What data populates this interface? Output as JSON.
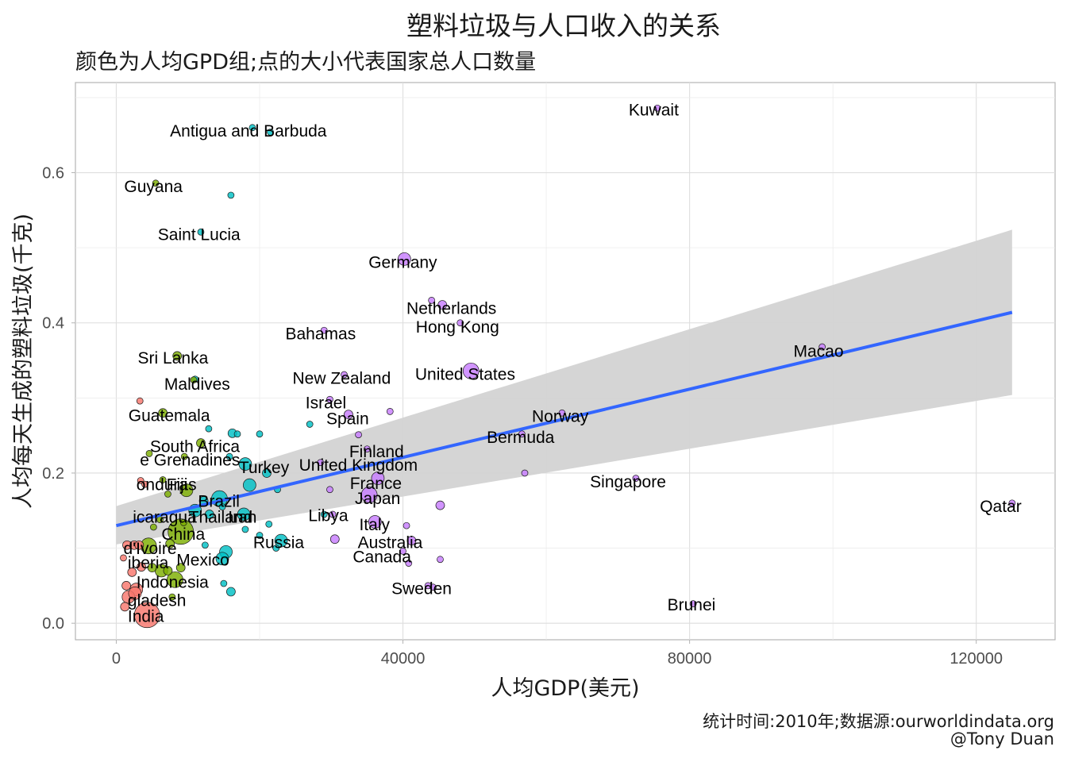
{
  "title": "塑料垃圾与人口收入的关系",
  "subtitle": "颜色为人均GPD组;点的大小代表国家总人口数量",
  "caption": {
    "line1": "统计时间:2010年;数据源:ourworldindata.org",
    "line2": "@Tony Duan"
  },
  "chart_data": {
    "type": "scatter",
    "title": "塑料垃圾与人口收入的关系",
    "subtitle": "颜色为人均GPD组;点的大小代表国家总人口数量",
    "xlabel": "人均GDP(美元)",
    "ylabel": "人均每天生成的塑料垃圾(千克)",
    "xlim": [
      -5700,
      131000
    ],
    "ylim": [
      -0.022,
      0.72
    ],
    "xticks": [
      0,
      40000,
      80000,
      120000
    ],
    "xtick_labels": [
      "0",
      "40000",
      "80000",
      "120000"
    ],
    "yticks": [
      0.0,
      0.2,
      0.4,
      0.6
    ],
    "ytick_labels": [
      "0.0",
      "0.2",
      "0.4",
      "0.6"
    ],
    "grid": true,
    "legend": "none",
    "group_colors": {
      "low": "#F8766D",
      "lower_middle": "#7CAE00",
      "upper_middle": "#00BFC4",
      "high": "#C77CFF"
    },
    "smooth": {
      "method": "linear fit with confidence band",
      "color": "#3366FF",
      "band_color": "#d3d3d3",
      "x": [
        0,
        125000
      ],
      "y": [
        0.13,
        0.414
      ],
      "band_low": [
        0.105,
        0.304
      ],
      "band_high": [
        0.156,
        0.524
      ]
    },
    "points": [
      {
        "x": 75500,
        "y": 0.686,
        "g": "high",
        "s": 1,
        "label": "Kuwait"
      },
      {
        "x": 19000,
        "y": 0.66,
        "g": "upper_middle",
        "s": 1,
        "label": "Antigua and Barbuda"
      },
      {
        "x": 21500,
        "y": 0.654,
        "g": "upper_middle",
        "s": 1,
        "label": ""
      },
      {
        "x": 5500,
        "y": 0.586,
        "g": "lower_middle",
        "s": 1,
        "label": "Guyana"
      },
      {
        "x": 16000,
        "y": 0.57,
        "g": "upper_middle",
        "s": 1,
        "label": ""
      },
      {
        "x": 11800,
        "y": 0.521,
        "g": "upper_middle",
        "s": 1,
        "label": "Saint Lucia"
      },
      {
        "x": 40200,
        "y": 0.485,
        "g": "high",
        "s": 3,
        "label": "Germany"
      },
      {
        "x": 44000,
        "y": 0.43,
        "g": "high",
        "s": 1,
        "label": ""
      },
      {
        "x": 45500,
        "y": 0.424,
        "g": "high",
        "s": 2,
        "label": "Netherlands"
      },
      {
        "x": 48000,
        "y": 0.4,
        "g": "high",
        "s": 1,
        "label": "Hong Kong"
      },
      {
        "x": 29000,
        "y": 0.39,
        "g": "high",
        "s": 1,
        "label": "Bahamas"
      },
      {
        "x": 8500,
        "y": 0.356,
        "g": "lower_middle",
        "s": 2,
        "label": "Sri Lanka"
      },
      {
        "x": 98500,
        "y": 0.368,
        "g": "high",
        "s": 1,
        "label": "Macao"
      },
      {
        "x": 49500,
        "y": 0.336,
        "g": "high",
        "s": 4,
        "label": "United States"
      },
      {
        "x": 31800,
        "y": 0.331,
        "g": "high",
        "s": 1,
        "label": "New Zealand"
      },
      {
        "x": 11000,
        "y": 0.325,
        "g": "upper_middle",
        "s": 1,
        "label": "Maldives"
      },
      {
        "x": 10800,
        "y": 0.324,
        "g": "lower_middle",
        "s": 1,
        "label": ""
      },
      {
        "x": 29800,
        "y": 0.298,
        "g": "high",
        "s": 1,
        "label": "Israel"
      },
      {
        "x": 3300,
        "y": 0.296,
        "g": "low",
        "s": 1,
        "label": ""
      },
      {
        "x": 38200,
        "y": 0.282,
        "g": "high",
        "s": 1,
        "label": ""
      },
      {
        "x": 32400,
        "y": 0.278,
        "g": "high",
        "s": 2,
        "label": "Spain"
      },
      {
        "x": 6500,
        "y": 0.28,
        "g": "lower_middle",
        "s": 2,
        "label": "Guatemala"
      },
      {
        "x": 62200,
        "y": 0.28,
        "g": "high",
        "s": 1,
        "label": "Norway"
      },
      {
        "x": 27000,
        "y": 0.265,
        "g": "upper_middle",
        "s": 1,
        "label": ""
      },
      {
        "x": 12900,
        "y": 0.259,
        "g": "upper_middle",
        "s": 1,
        "label": ""
      },
      {
        "x": 16200,
        "y": 0.253,
        "g": "upper_middle",
        "s": 2,
        "label": ""
      },
      {
        "x": 16900,
        "y": 0.252,
        "g": "upper_middle",
        "s": 1,
        "label": ""
      },
      {
        "x": 20000,
        "y": 0.252,
        "g": "upper_middle",
        "s": 1,
        "label": ""
      },
      {
        "x": 33800,
        "y": 0.251,
        "g": "high",
        "s": 1,
        "label": ""
      },
      {
        "x": 56600,
        "y": 0.252,
        "g": "high",
        "s": 1,
        "label": "Bermuda"
      },
      {
        "x": 11800,
        "y": 0.24,
        "g": "lower_middle",
        "s": 2,
        "label": "South Africa"
      },
      {
        "x": 4600,
        "y": 0.226,
        "g": "lower_middle",
        "s": 1,
        "label": ""
      },
      {
        "x": 9500,
        "y": 0.222,
        "g": "lower_middle",
        "s": 1,
        "label": ""
      },
      {
        "x": 35000,
        "y": 0.232,
        "g": "high",
        "s": 1,
        "label": "Finland"
      },
      {
        "x": 15800,
        "y": 0.222,
        "g": "upper_middle",
        "s": 1,
        "label": ""
      },
      {
        "x": 18000,
        "y": 0.212,
        "g": "upper_middle",
        "s": 3,
        "label": "Turkey"
      },
      {
        "x": 28500,
        "y": 0.214,
        "g": "high",
        "s": 1,
        "label": "United Kingdom"
      },
      {
        "x": 57000,
        "y": 0.2,
        "g": "high",
        "s": 1,
        "label": ""
      },
      {
        "x": 21000,
        "y": 0.2,
        "g": "upper_middle",
        "s": 2,
        "label": ""
      },
      {
        "x": 6500,
        "y": 0.191,
        "g": "lower_middle",
        "s": 1,
        "label": "e Grenadines"
      },
      {
        "x": 3400,
        "y": 0.19,
        "g": "low",
        "s": 1,
        "label": ""
      },
      {
        "x": 4000,
        "y": 0.185,
        "g": "low",
        "s": 1,
        "label": ""
      },
      {
        "x": 36500,
        "y": 0.193,
        "g": "high",
        "s": 3,
        "label": ""
      },
      {
        "x": 72500,
        "y": 0.193,
        "g": "high",
        "s": 1,
        "label": "Singapore"
      },
      {
        "x": 18600,
        "y": 0.184,
        "g": "upper_middle",
        "s": 3,
        "label": ""
      },
      {
        "x": 22500,
        "y": 0.178,
        "g": "upper_middle",
        "s": 1,
        "label": ""
      },
      {
        "x": 29800,
        "y": 0.178,
        "g": "high",
        "s": 1,
        "label": ""
      },
      {
        "x": 9800,
        "y": 0.177,
        "g": "lower_middle",
        "s": 3,
        "label": "Fiji"
      },
      {
        "x": 7200,
        "y": 0.172,
        "g": "lower_middle",
        "s": 1,
        "label": "onduras"
      },
      {
        "x": 35300,
        "y": 0.171,
        "g": "high",
        "s": 4,
        "label": "France"
      },
      {
        "x": 14400,
        "y": 0.166,
        "g": "upper_middle",
        "s": 4,
        "label": ""
      },
      {
        "x": 12200,
        "y": 0.163,
        "g": "upper_middle",
        "s": 2,
        "label": "Brazil"
      },
      {
        "x": 45200,
        "y": 0.157,
        "g": "high",
        "s": 2,
        "label": ""
      },
      {
        "x": 14800,
        "y": 0.155,
        "g": "upper_middle",
        "s": 1,
        "label": "Iran"
      },
      {
        "x": 11000,
        "y": 0.15,
        "g": "upper_middle",
        "s": 3,
        "label": "Thailand"
      },
      {
        "x": 13000,
        "y": 0.145,
        "g": "upper_middle",
        "s": 2,
        "label": ""
      },
      {
        "x": 17800,
        "y": 0.145,
        "g": "upper_middle",
        "s": 3,
        "label": ""
      },
      {
        "x": 29000,
        "y": 0.145,
        "g": "upper_middle",
        "s": 1,
        "label": "Libya"
      },
      {
        "x": 30200,
        "y": 0.145,
        "g": "high",
        "s": 1,
        "label": "Japan"
      },
      {
        "x": 6100,
        "y": 0.138,
        "g": "lower_middle",
        "s": 1,
        "label": ""
      },
      {
        "x": 9400,
        "y": 0.134,
        "g": "lower_middle",
        "s": 1,
        "label": ""
      },
      {
        "x": 36100,
        "y": 0.135,
        "g": "high",
        "s": 3,
        "label": "Italy"
      },
      {
        "x": 21300,
        "y": 0.132,
        "g": "upper_middle",
        "s": 1,
        "label": ""
      },
      {
        "x": 40500,
        "y": 0.13,
        "g": "high",
        "s": 1,
        "label": ""
      },
      {
        "x": 5200,
        "y": 0.128,
        "g": "lower_middle",
        "s": 1,
        "label": "icaragua"
      },
      {
        "x": 18000,
        "y": 0.125,
        "g": "upper_middle",
        "s": 1,
        "label": ""
      },
      {
        "x": 9000,
        "y": 0.122,
        "g": "lower_middle",
        "s": 6,
        "label": ""
      },
      {
        "x": 20000,
        "y": 0.117,
        "g": "upper_middle",
        "s": 1,
        "label": ""
      },
      {
        "x": 30500,
        "y": 0.112,
        "g": "high",
        "s": 2,
        "label": ""
      },
      {
        "x": 41200,
        "y": 0.11,
        "g": "high",
        "s": 2,
        "label": "Australia"
      },
      {
        "x": 23000,
        "y": 0.11,
        "g": "upper_middle",
        "s": 3,
        "label": "Russia"
      },
      {
        "x": 4500,
        "y": 0.103,
        "g": "lower_middle",
        "s": 4,
        "label": "China"
      },
      {
        "x": 7500,
        "y": 0.106,
        "g": "lower_middle",
        "s": 2,
        "label": ""
      },
      {
        "x": 12400,
        "y": 0.104,
        "g": "upper_middle",
        "s": 1,
        "label": ""
      },
      {
        "x": 1500,
        "y": 0.104,
        "g": "low",
        "s": 2,
        "label": "d'Ivoire"
      },
      {
        "x": 2500,
        "y": 0.104,
        "g": "low",
        "s": 2,
        "label": ""
      },
      {
        "x": 3200,
        "y": 0.104,
        "g": "low",
        "s": 2,
        "label": ""
      },
      {
        "x": 22300,
        "y": 0.1,
        "g": "upper_middle",
        "s": 1,
        "label": ""
      },
      {
        "x": 15300,
        "y": 0.095,
        "g": "upper_middle",
        "s": 3,
        "label": ""
      },
      {
        "x": 40000,
        "y": 0.096,
        "g": "high",
        "s": 1,
        "label": ""
      },
      {
        "x": 14800,
        "y": 0.086,
        "g": "upper_middle",
        "s": 3,
        "label": ""
      },
      {
        "x": 1000,
        "y": 0.087,
        "g": "low",
        "s": 1,
        "label": ""
      },
      {
        "x": 40800,
        "y": 0.08,
        "g": "high",
        "s": 1,
        "label": "Canada"
      },
      {
        "x": 45200,
        "y": 0.085,
        "g": "high",
        "s": 1,
        "label": ""
      },
      {
        "x": 9000,
        "y": 0.074,
        "g": "lower_middle",
        "s": 2,
        "label": ""
      },
      {
        "x": 6300,
        "y": 0.07,
        "g": "lower_middle",
        "s": 3,
        "label": "Mexico"
      },
      {
        "x": 7200,
        "y": 0.07,
        "g": "lower_middle",
        "s": 2,
        "label": ""
      },
      {
        "x": 5000,
        "y": 0.074,
        "g": "lower_middle",
        "s": 2,
        "label": ""
      },
      {
        "x": 3500,
        "y": 0.075,
        "g": "low",
        "s": 2,
        "label": "iberia"
      },
      {
        "x": 2200,
        "y": 0.068,
        "g": "low",
        "s": 2,
        "label": ""
      },
      {
        "x": 8200,
        "y": 0.058,
        "g": "lower_middle",
        "s": 4,
        "label": "Indonesia"
      },
      {
        "x": 1400,
        "y": 0.05,
        "g": "low",
        "s": 2,
        "label": ""
      },
      {
        "x": 2800,
        "y": 0.045,
        "g": "low",
        "s": 3,
        "label": ""
      },
      {
        "x": 16000,
        "y": 0.042,
        "g": "upper_middle",
        "s": 2,
        "label": ""
      },
      {
        "x": 15000,
        "y": 0.053,
        "g": "upper_middle",
        "s": 1,
        "label": ""
      },
      {
        "x": 43500,
        "y": 0.05,
        "g": "high",
        "s": 1,
        "label": "Sweden"
      },
      {
        "x": 44200,
        "y": 0.048,
        "g": "high",
        "s": 1,
        "label": ""
      },
      {
        "x": 1700,
        "y": 0.035,
        "g": "low",
        "s": 3,
        "label": "gladesh"
      },
      {
        "x": 2600,
        "y": 0.04,
        "g": "low",
        "s": 3,
        "label": ""
      },
      {
        "x": 1200,
        "y": 0.022,
        "g": "low",
        "s": 2,
        "label": ""
      },
      {
        "x": 7800,
        "y": 0.035,
        "g": "lower_middle",
        "s": 1,
        "label": ""
      },
      {
        "x": 4300,
        "y": 0.011,
        "g": "low",
        "s": 6,
        "label": "India"
      },
      {
        "x": 80500,
        "y": 0.026,
        "g": "high",
        "s": 1,
        "label": "Brunei"
      },
      {
        "x": 125000,
        "y": 0.16,
        "g": "high",
        "s": 1,
        "label": "Qatar"
      }
    ],
    "labels": [
      {
        "text": "Kuwait",
        "x": 71500,
        "y": 0.676,
        "color": "#000000"
      },
      {
        "text": "Antigua and Barbuda",
        "x": 7500,
        "y": 0.648,
        "color": "#000000"
      },
      {
        "text": "Guyana",
        "x": 1100,
        "y": 0.574,
        "color": "#000000"
      },
      {
        "text": "Saint Lucia",
        "x": 5800,
        "y": 0.51,
        "color": "#000000"
      },
      {
        "text": "Germany",
        "x": 35200,
        "y": 0.473,
        "color": "#000000"
      },
      {
        "text": "Netherlands",
        "x": 40500,
        "y": 0.412,
        "color": "#000000"
      },
      {
        "text": "Hong Kong",
        "x": 41800,
        "y": 0.387,
        "color": "#000000"
      },
      {
        "text": "Bahamas",
        "x": 23600,
        "y": 0.378,
        "color": "#000000"
      },
      {
        "text": "Sri Lanka",
        "x": 3000,
        "y": 0.346,
        "color": "#000000"
      },
      {
        "text": "Macao",
        "x": 94500,
        "y": 0.355,
        "color": "#4d4d4d"
      },
      {
        "text": "United States",
        "x": 41700,
        "y": 0.324,
        "color": "#000000"
      },
      {
        "text": "New Zealand",
        "x": 24600,
        "y": 0.319,
        "color": "#000000"
      },
      {
        "text": "Maldives",
        "x": 6700,
        "y": 0.311,
        "color": "#000000"
      },
      {
        "text": "Israel",
        "x": 26400,
        "y": 0.286,
        "color": "#000000"
      },
      {
        "text": "Guatemala",
        "x": 1700,
        "y": 0.269,
        "color": "#000000"
      },
      {
        "text": "Spain",
        "x": 29300,
        "y": 0.265,
        "color": "#000000"
      },
      {
        "text": "Norway",
        "x": 58000,
        "y": 0.268,
        "color": "#4d4d4d"
      },
      {
        "text": "Bermuda",
        "x": 51700,
        "y": 0.24,
        "color": "#4d4d4d"
      },
      {
        "text": "South Africa",
        "x": 4700,
        "y": 0.228,
        "color": "#000000"
      },
      {
        "text": "Finland",
        "x": 32500,
        "y": 0.221,
        "color": "#000000"
      },
      {
        "text": "e Grenadines",
        "x": 3300,
        "y": 0.21,
        "color": "#000000"
      },
      {
        "text": "Turkey",
        "x": 17100,
        "y": 0.2,
        "color": "#000000"
      },
      {
        "text": "United Kingdom",
        "x": 25500,
        "y": 0.203,
        "color": "#000000"
      },
      {
        "text": "Singapore",
        "x": 66100,
        "y": 0.181,
        "color": "#000000"
      },
      {
        "text": "France",
        "x": 32600,
        "y": 0.179,
        "color": "#000000"
      },
      {
        "text": "onduras",
        "x": 2800,
        "y": 0.177,
        "color": "#000000"
      },
      {
        "text": "Fiji",
        "x": 7000,
        "y": 0.177,
        "color": "#000000"
      },
      {
        "text": "Qatar",
        "x": 120500,
        "y": 0.148,
        "color": "#000000"
      },
      {
        "text": "Japan",
        "x": 33300,
        "y": 0.159,
        "color": "#000000"
      },
      {
        "text": "Brazil",
        "x": 11400,
        "y": 0.155,
        "color": "#4d4d4d"
      },
      {
        "text": "icaragua",
        "x": 2300,
        "y": 0.134,
        "color": "#000000"
      },
      {
        "text": "Thailand",
        "x": 10100,
        "y": 0.134,
        "color": "#4d4d4d"
      },
      {
        "text": "Iran",
        "x": 15600,
        "y": 0.134,
        "color": "#000000"
      },
      {
        "text": "Libya",
        "x": 26800,
        "y": 0.136,
        "color": "#000000"
      },
      {
        "text": "Italy",
        "x": 33900,
        "y": 0.124,
        "color": "#000000"
      },
      {
        "text": "China",
        "x": 6300,
        "y": 0.111,
        "color": "#000000"
      },
      {
        "text": "Russia",
        "x": 19100,
        "y": 0.1,
        "color": "#000000"
      },
      {
        "text": "Australia",
        "x": 33700,
        "y": 0.1,
        "color": "#000000"
      },
      {
        "text": "d'Ivoire",
        "x": 1000,
        "y": 0.092,
        "color": "#000000"
      },
      {
        "text": "Canada",
        "x": 33000,
        "y": 0.081,
        "color": "#000000"
      },
      {
        "text": "Mexico",
        "x": 8400,
        "y": 0.077,
        "color": "#000000"
      },
      {
        "text": "iberia",
        "x": 1600,
        "y": 0.073,
        "color": "#000000"
      },
      {
        "text": "Indonesia",
        "x": 2800,
        "y": 0.047,
        "color": "#000000"
      },
      {
        "text": "Sweden",
        "x": 38400,
        "y": 0.039,
        "color": "#000000"
      },
      {
        "text": "gladesh",
        "x": 1600,
        "y": 0.023,
        "color": "#000000"
      },
      {
        "text": "Brunei",
        "x": 76900,
        "y": 0.017,
        "color": "#000000"
      },
      {
        "text": "India",
        "x": 1600,
        "y": 0.002,
        "color": "#000000"
      }
    ]
  }
}
